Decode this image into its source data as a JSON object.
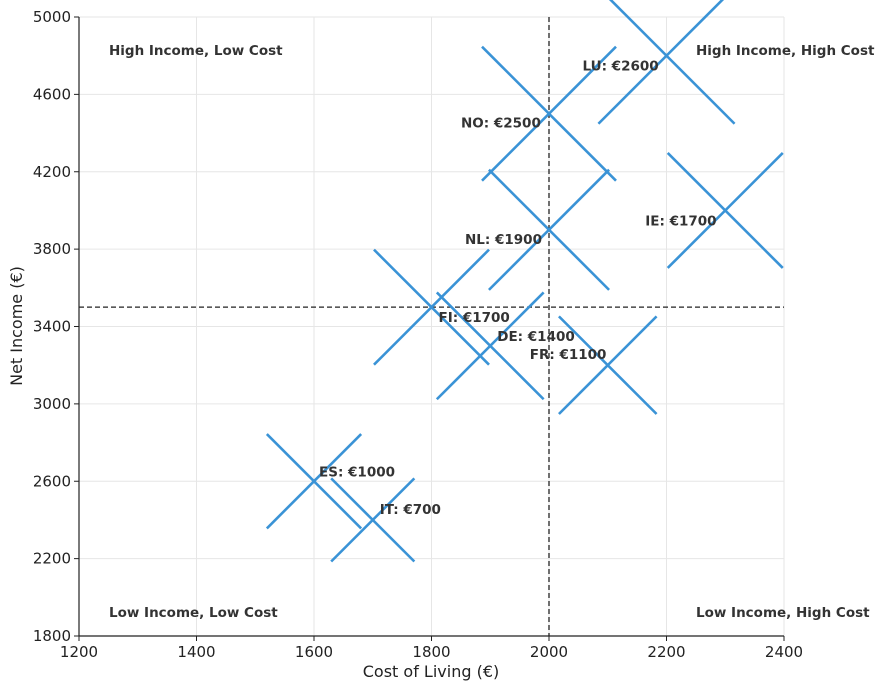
{
  "chart_data": {
    "type": "scatter",
    "title": "",
    "xlabel": "Cost of Living (€)",
    "ylabel": "Net Income (€)",
    "xlim": [
      1200,
      2400
    ],
    "ylim": [
      1800,
      5000
    ],
    "xticks": [
      1200,
      1400,
      1600,
      1800,
      2000,
      2200,
      2400
    ],
    "yticks": [
      1800,
      2200,
      2600,
      3000,
      3400,
      3800,
      4200,
      4600,
      5000
    ],
    "grid": true,
    "marker": "x",
    "marker_color": "#3a93d6",
    "reference_lines": {
      "x": 2000,
      "y": 3500
    },
    "quadrant_labels": {
      "top_left": "High Income, Low Cost",
      "top_right": "High Income, High Cost",
      "bottom_left": "Low Income, Low Cost",
      "bottom_right": "Low Income, High Cost"
    },
    "points": [
      {
        "country": "LU",
        "label": "LU: €2600",
        "cost": 2200,
        "income": 4800,
        "size": 2600
      },
      {
        "country": "NO",
        "label": "NO: €2500",
        "cost": 2000,
        "income": 4500,
        "size": 2500
      },
      {
        "country": "IE",
        "label": "IE: €1700",
        "cost": 2300,
        "income": 4000,
        "size": 1700
      },
      {
        "country": "NL",
        "label": "NL: €1900",
        "cost": 2000,
        "income": 3900,
        "size": 1900
      },
      {
        "country": "FI",
        "label": "FI: €1700",
        "cost": 1800,
        "income": 3500,
        "size": 1700
      },
      {
        "country": "DE",
        "label": "DE: €1400",
        "cost": 1900,
        "income": 3300,
        "size": 1400
      },
      {
        "country": "FR",
        "label": "FR: €1100",
        "cost": 2100,
        "income": 3200,
        "size": 1100
      },
      {
        "country": "ES",
        "label": "ES: €1000",
        "cost": 1600,
        "income": 2600,
        "size": 1000
      },
      {
        "country": "IT",
        "label": "IT: €700",
        "cost": 1700,
        "income": 2400,
        "size": 700
      }
    ]
  }
}
